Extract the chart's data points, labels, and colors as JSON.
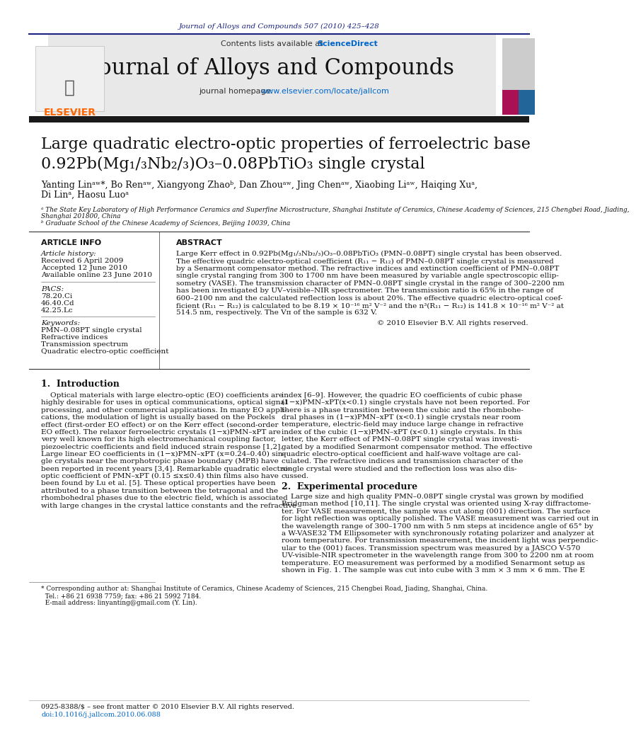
{
  "bg_color": "#ffffff",
  "journal_ref": "Journal of Alloys and Compounds 507 (2010) 425–428",
  "journal_ref_color": "#1a237e",
  "header_bg": "#e8e8e8",
  "contents_line": "Contents lists available at ",
  "sciencedirect_text": "ScienceDirect",
  "sciencedirect_color": "#0066cc",
  "journal_title": "Journal of Alloys and Compounds",
  "homepage_url_color": "#0066cc",
  "divider_color": "#1a237e",
  "paper_title_line1": "Large quadratic electro-optic properties of ferroelectric base",
  "paper_title_line2": "0.92Pb(Mg₁/₃Nb₂/₃)O₃–0.08PbTiO₃ single crystal",
  "authors": "Yanting Linᵃʷ*, Bo Renᵃʷ, Xiangyong Zhaoᵇ, Dan Zhouᵃʷ, Jing Chenᵃʷ, Xiaobing Liᵃʷ, Haiqing Xuᵃ,",
  "authors2": "Di Linᵃ, Haosu Luoᵃ",
  "affil_a": "ᵃ The State Key Laboratory of High Performance Ceramics and Superfine Microstructure, Shanghai Institute of Ceramics, Chinese Academy of Sciences, 215 Chengbei Road, Jiading,",
  "affil_a2": "Shanghai 201800, China",
  "affil_b": "ᵇ Graduate School of the Chinese Academy of Sciences, Beijing 10039, China",
  "section_article_info": "ARTICLE INFO",
  "section_abstract": "ABSTRACT",
  "article_history_title": "Article history:",
  "received": "Received 6 April 2009",
  "accepted": "Accepted 12 June 2010",
  "available": "Available online 23 June 2010",
  "pacs_title": "PACS:",
  "pacs1": "78.20.Ci",
  "pacs2": "46.40.Cd",
  "pacs3": "42.25.Lc",
  "keywords_title": "Keywords:",
  "keyword1": "PMN–0.08PT single crystal",
  "keyword2": "Refractive indices",
  "keyword3": "Transmission spectrum",
  "keyword4": "Quadratic electro-optic coefficient",
  "copyright": "© 2010 Elsevier B.V. All rights reserved.",
  "section1_title": "1.  Introduction",
  "section2_title": "2.  Experimental procedure",
  "footnote_line1": "* Corresponding author at: Shanghai Institute of Ceramics, Chinese Academy of Sciences, 215 Chengbei Road, Jiading, Shanghai, China.",
  "footnote_line2": "  Tel.: +86 21 6938 7759; fax: +86 21 5992 7184.",
  "footnote_line3": "  E-mail address: linyanting@gmail.com (Y. Lin).",
  "issn_line": "0925-8388/$ – see front matter © 2010 Elsevier B.V. All rights reserved.",
  "doi_line": "doi:10.1016/j.jallcom.2010.06.088",
  "elsevier_color": "#ff6600",
  "link_color": "#0066cc",
  "abstract_lines": [
    "Large Kerr effect in 0.92Pb(Mg₁/₃Nb₂/₃)O₃–0.08PbTiO₃ (PMN–0.08PT) single crystal has been observed.",
    "The effective quadric electro-optical coefficient (R₁₁ − R₁₂) of PMN–0.08PT single crystal is measured",
    "by a Senarmont compensator method. The refractive indices and extinction coefficient of PMN–0.08PT",
    "single crystal ranging from 300 to 1700 nm have been measured by variable angle spectroscopic ellip-",
    "sometry (VASE). The transmission character of PMN–0.08PT single crystal in the range of 300–2200 nm",
    "has been investigated by UV–visible–NIR spectrometer. The transmission ratio is 65% in the range of",
    "600–2100 nm and the calculated reflection loss is about 20%. The effective quadric electro-optical coef-",
    "ficient (R₁₁ − R₁₂) is calculated to be 8.19 × 10⁻¹⁶ m² V⁻² and the n³(R₁₁ − R₁₂) is 141.8 × 10⁻¹⁶ m² V⁻² at",
    "514.5 nm, respectively. The Vπ of the sample is 632 V."
  ],
  "intro_lines_left": [
    "    Optical materials with large electro-optic (EO) coefficients are",
    "highly desirable for uses in optical communications, optical signal",
    "processing, and other commercial applications. In many EO appli-",
    "cations, the modulation of light is usually based on the Pockels",
    "effect (first-order EO effect) or on the Kerr effect (second-order",
    "EO effect). The relaxor ferroelectric crystals (1−x)PMN–xPT are",
    "very well known for its high electromechanical coupling factor,",
    "piezoelectric coefficients and field induced strain response [1,2].",
    "Large linear EO coefficients in (1−x)PMN–xPT (x=0.24–0.40) sin-",
    "gle crystals near the morphotropic phase boundary (MPB) have",
    "been reported in recent years [3,4]. Remarkable quadratic electro-",
    "optic coefficient of PMN–xPT (0.15 ≤x≤0.4) thin films also have",
    "been found by Lu et al. [5]. These optical properties have been",
    "attributed to a phase transition between the tetragonal and the",
    "rhombohedral phases due to the electric field, which is associated",
    "with large changes in the crystal lattice constants and the refractive"
  ],
  "intro_lines_right": [
    "index [6–9]. However, the quadric EO coefficients of cubic phase",
    "(1−x)PMN–xPT(x<0.1) single crystals have not been reported. For",
    "there is a phase transition between the cubic and the rhombohe-",
    "dral phases in (1−x)PMN–xPT (x<0.1) single crystals near room",
    "temperature, electric-field may induce large change in refractive",
    "index of the cubic (1−x)PMN–xPT (x<0.1) single crystals. In this",
    "letter, the Kerr effect of PMN–0.08PT single crystal was investi-",
    "gated by a modified Senarmont compensator method. The effective",
    "quadric electro-optical coefficient and half-wave voltage are cal-",
    "culated. The refractive indices and transmission character of the",
    "single crystal were studied and the reflection loss was also dis-",
    "cussed."
  ],
  "exp_lines": [
    "    Large size and high quality PMN–0.08PT single crystal was grown by modified",
    "Bridgman method [10,11]. The single crystal was oriented using X-ray diffractome-",
    "ter. For VASE measurement, the sample was cut along (001) direction. The surface",
    "for light reflection was optically polished. The VASE measurement was carried out in",
    "the wavelength range of 300–1700 nm with 5 nm steps at incidence angle of 65° by",
    "a W-VASE32 TM Ellipsometer with synchronously rotating polarizer and analyzer at",
    "room temperature. For transmission measurement, the incident light was perpendic-",
    "ular to the (001) faces. Transmission spectrum was measured by a JASCO V-570",
    "UV-visible-NIR spectrometer in the wavelength range from 300 to 2200 nm at room",
    "temperature. EO measurement was performed by a modified Senarmont setup as",
    "shown in Fig. 1. The sample was cut into cube with 3 mm × 3 mm × 6 mm. The E"
  ]
}
